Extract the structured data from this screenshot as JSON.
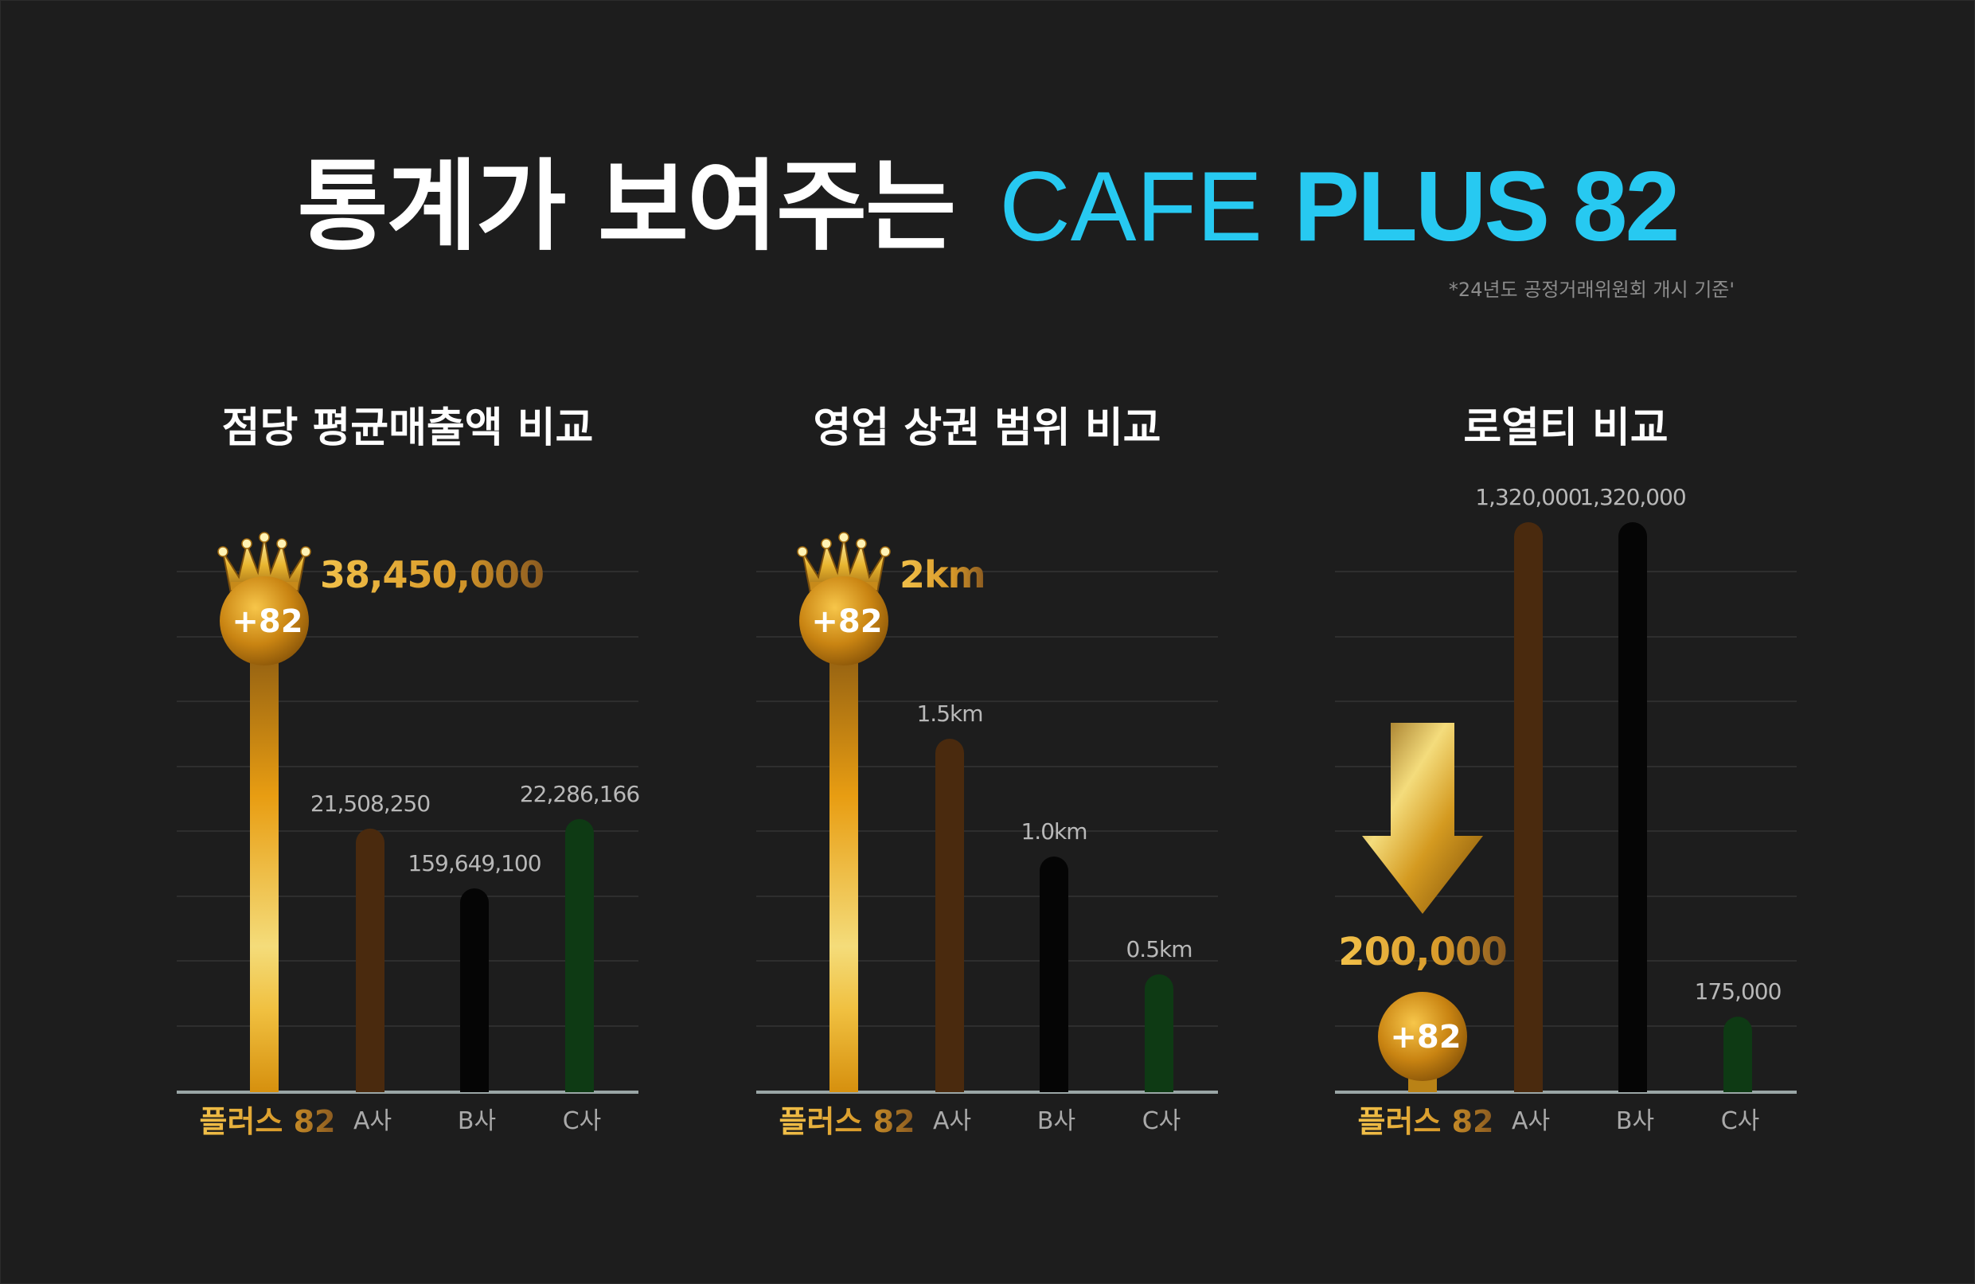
{
  "header": {
    "title_ko": "통계가 보여주는",
    "brand_thin": "CAFE",
    "brand_bold": "PLUS 82",
    "note": "*24년도 공정거래위원회 개시 기준'"
  },
  "colors": {
    "brand": "#27c9f1",
    "gold": "#e0a123",
    "company_a": "#4a2a0e",
    "company_b": "#050505",
    "company_c": "#0e3a14",
    "baseline": "#9aa6a6",
    "value_text": "#b8b8b8"
  },
  "badge_label": "+82",
  "icons": [
    "crown-icon",
    "down-arrow-icon",
    "plus82-badge-icon"
  ],
  "chart_data": [
    {
      "type": "bar",
      "title": "점당 평균매출액 비교",
      "categories": [
        "플러스 82",
        "A사",
        "B사",
        "C사"
      ],
      "values": [
        38450000,
        21508250,
        159649100,
        22286166
      ],
      "value_labels": [
        "38,450,000",
        "21,508,250",
        "159,649,100",
        "22,286,166"
      ],
      "highlight": "crown",
      "grid": true
    },
    {
      "type": "bar",
      "title": "영업 상권 범위 비교",
      "categories": [
        "플러스 82",
        "A사",
        "B사",
        "C사"
      ],
      "values": [
        2,
        1.5,
        1.0,
        0.5
      ],
      "value_labels": [
        "2km",
        "1.5km",
        "1.0km",
        "0.5km"
      ],
      "highlight": "crown",
      "grid": true
    },
    {
      "type": "bar",
      "title": "로열티 비교",
      "categories": [
        "플러스 82",
        "A사",
        "B사",
        "C사"
      ],
      "values": [
        200000,
        1320000,
        1320000,
        175000
      ],
      "value_labels": [
        "200,000",
        "1,320,000",
        "1,320,000",
        "175,000"
      ],
      "highlight": "down-arrow",
      "grid": true
    }
  ]
}
